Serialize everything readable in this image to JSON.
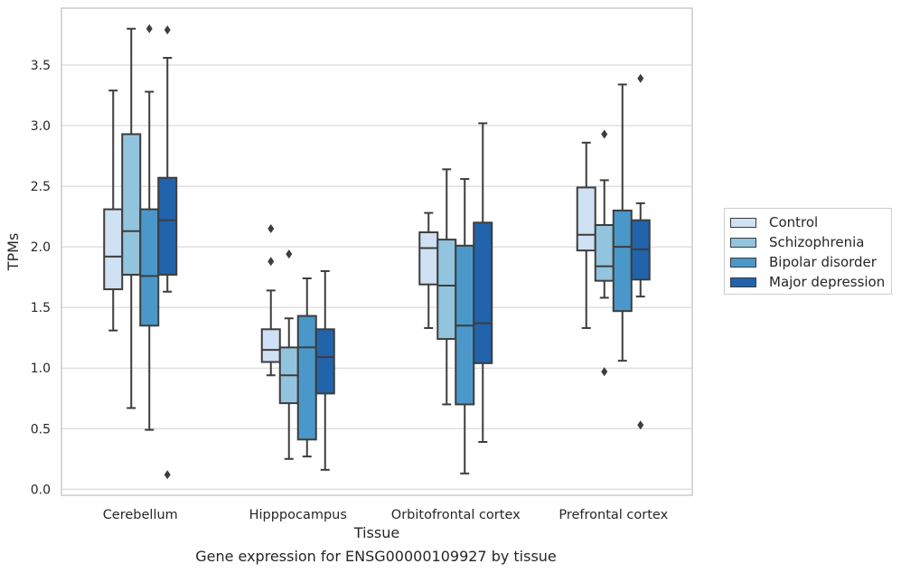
{
  "chart_data": {
    "type": "box",
    "xlabel": "Tissue",
    "ylabel": "TPMs",
    "ylim": [
      -0.05,
      3.97
    ],
    "yticks": [
      0.0,
      0.5,
      1.0,
      1.5,
      2.0,
      2.5,
      3.0,
      3.5
    ],
    "ytick_labels": [
      "0.0",
      "0.5",
      "1.0",
      "1.5",
      "2.0",
      "2.5",
      "3.0",
      "3.5"
    ],
    "categories": [
      "Cerebellum",
      "Hipppocampus",
      "Orbitofrontal cortex",
      "Prefrontal cortex"
    ],
    "grid": "horizontal",
    "legend_placement": "outside-right",
    "series": [
      {
        "name": "Control",
        "color": "#cfe1f2",
        "boxes": [
          {
            "whislo": 1.31,
            "q1": 1.65,
            "med": 1.92,
            "q3": 2.31,
            "whishi": 3.29,
            "fliers": []
          },
          {
            "whislo": 0.94,
            "q1": 1.05,
            "med": 1.15,
            "q3": 1.32,
            "whishi": 1.64,
            "fliers": [
              1.88,
              2.15
            ]
          },
          {
            "whislo": 1.33,
            "q1": 1.69,
            "med": 1.99,
            "q3": 2.12,
            "whishi": 2.28,
            "fliers": []
          },
          {
            "whislo": 1.33,
            "q1": 1.97,
            "med": 2.1,
            "q3": 2.49,
            "whishi": 2.86,
            "fliers": []
          }
        ]
      },
      {
        "name": "Schizophrenia",
        "color": "#93c4de",
        "boxes": [
          {
            "whislo": 0.67,
            "q1": 1.77,
            "med": 2.13,
            "q3": 2.93,
            "whishi": 3.8,
            "fliers": []
          },
          {
            "whislo": 0.25,
            "q1": 0.71,
            "med": 0.94,
            "q3": 1.17,
            "whishi": 1.41,
            "fliers": [
              1.94
            ]
          },
          {
            "whislo": 0.7,
            "q1": 1.24,
            "med": 1.68,
            "q3": 2.06,
            "whishi": 2.64,
            "fliers": []
          },
          {
            "whislo": 1.58,
            "q1": 1.72,
            "med": 1.84,
            "q3": 2.18,
            "whishi": 2.55,
            "fliers": [
              2.93,
              0.97
            ]
          }
        ]
      },
      {
        "name": "Bipolar disorder",
        "color": "#4a98c9",
        "boxes": [
          {
            "whislo": 0.49,
            "q1": 1.35,
            "med": 1.76,
            "q3": 2.31,
            "whishi": 3.28,
            "fliers": [
              3.8
            ]
          },
          {
            "whislo": 0.27,
            "q1": 0.41,
            "med": 1.17,
            "q3": 1.43,
            "whishi": 1.74,
            "fliers": []
          },
          {
            "whislo": 0.13,
            "q1": 0.7,
            "med": 1.35,
            "q3": 2.01,
            "whishi": 2.56,
            "fliers": []
          },
          {
            "whislo": 1.06,
            "q1": 1.47,
            "med": 2.0,
            "q3": 2.3,
            "whishi": 3.34,
            "fliers": []
          }
        ]
      },
      {
        "name": "Major depression",
        "color": "#2164ab",
        "boxes": [
          {
            "whislo": 1.63,
            "q1": 1.77,
            "med": 2.22,
            "q3": 2.57,
            "whishi": 3.56,
            "fliers": [
              3.79,
              0.12
            ]
          },
          {
            "whislo": 0.16,
            "q1": 0.79,
            "med": 1.09,
            "q3": 1.32,
            "whishi": 1.8,
            "fliers": []
          },
          {
            "whislo": 0.39,
            "q1": 1.04,
            "med": 1.37,
            "q3": 2.2,
            "whishi": 3.02,
            "fliers": []
          },
          {
            "whislo": 1.59,
            "q1": 1.73,
            "med": 1.98,
            "q3": 2.22,
            "whishi": 2.36,
            "fliers": [
              3.39,
              0.53
            ]
          }
        ]
      }
    ]
  },
  "caption": "Gene expression for ENSG00000109927 by tissue"
}
